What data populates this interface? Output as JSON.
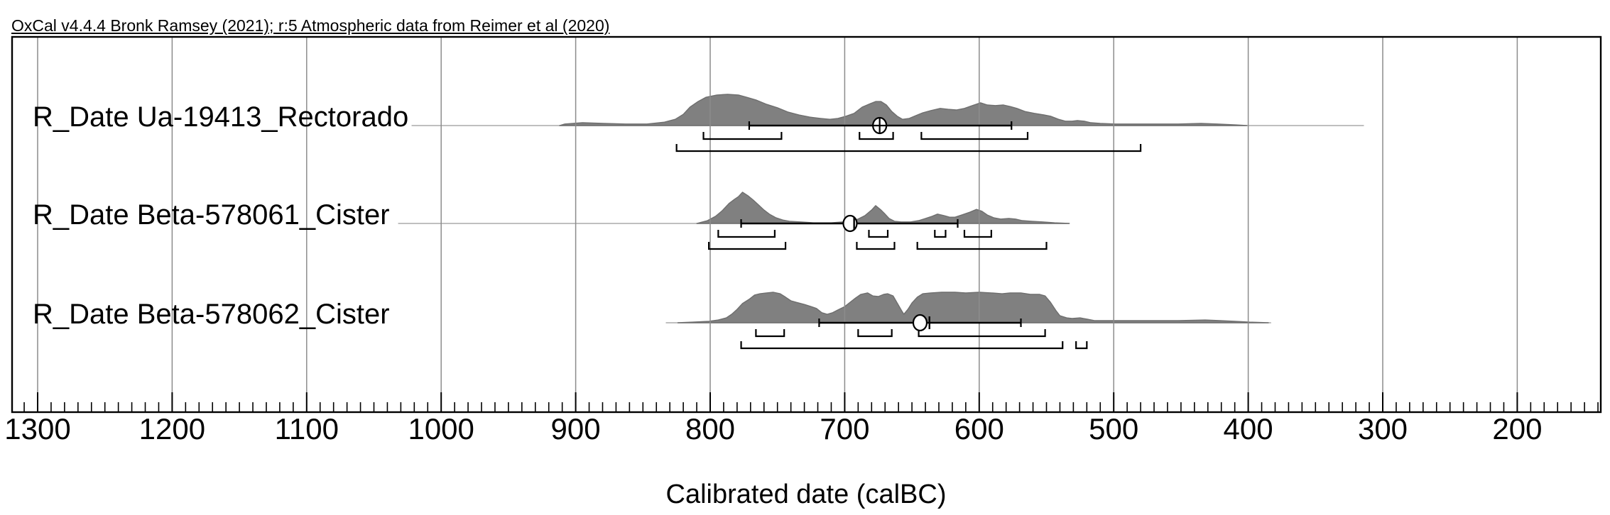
{
  "chart_data": {
    "type": "area",
    "title": "OxCal v4.4.4 Bronk Ramsey (2021); r:5 Atmospheric data from Reimer et al (2020)",
    "xlabel": "Calibrated date (calBC)",
    "x_axis": {
      "direction": "values-decrease-to-right",
      "visible_range": [
        1319,
        138
      ],
      "major_tick_labels": [
        "1300",
        "1200",
        "1100",
        "1000",
        "900",
        "800",
        "700",
        "600",
        "500",
        "400",
        "300",
        "200"
      ],
      "major_tick_values": [
        1300,
        1200,
        1100,
        1000,
        900,
        800,
        700,
        600,
        500,
        400,
        300,
        200
      ],
      "minor_tick_step": 10,
      "grid": "vertical-major"
    },
    "distributions": [
      {
        "label": "R_Date Ua-19413_Rectorado",
        "marker_style": "circle-cross",
        "mean_calBC": 674,
        "median_calBC": 674,
        "mean_1sigma_range_calBC": [
          771,
          576
        ],
        "ranges_68_3_calBC": [
          [
            805,
            747
          ],
          [
            689,
            664
          ],
          [
            643,
            564
          ]
        ],
        "ranges_95_4_calBC": [
          [
            825,
            480
          ]
        ],
        "baseline_extent_calBC": [
          1022,
          314
        ],
        "pdf": {
          "calBC": [
            912,
            908,
            895,
            879,
            863,
            847,
            834,
            826,
            820,
            815,
            809,
            803,
            795,
            787,
            779,
            773,
            766,
            758,
            750,
            742,
            734,
            726,
            718,
            711,
            705,
            699,
            693,
            687,
            681,
            677,
            673,
            669,
            665,
            661,
            657,
            652,
            647,
            642,
            636,
            629,
            623,
            617,
            611,
            605,
            599,
            594,
            588,
            582,
            577,
            572,
            566,
            559,
            552,
            547,
            541,
            536,
            531,
            527,
            522,
            517,
            510,
            499,
            478,
            452,
            435,
            423,
            409,
            401
          ],
          "p": [
            0,
            0.05,
            0.09,
            0.07,
            0.05,
            0.05,
            0.11,
            0.2,
            0.36,
            0.59,
            0.77,
            0.91,
            0.98,
            1,
            0.98,
            0.91,
            0.82,
            0.68,
            0.57,
            0.43,
            0.34,
            0.27,
            0.23,
            0.2,
            0.23,
            0.3,
            0.39,
            0.59,
            0.7,
            0.77,
            0.77,
            0.66,
            0.45,
            0.3,
            0.2,
            0.23,
            0.32,
            0.41,
            0.48,
            0.55,
            0.52,
            0.5,
            0.55,
            0.64,
            0.73,
            0.66,
            0.64,
            0.66,
            0.61,
            0.55,
            0.45,
            0.39,
            0.34,
            0.3,
            0.2,
            0.14,
            0.14,
            0.16,
            0.14,
            0.09,
            0.07,
            0.05,
            0.05,
            0.05,
            0.07,
            0.05,
            0.02,
            0
          ]
        }
      },
      {
        "label": "R_Date Beta-578061_Cister",
        "marker_style": "circle-tick",
        "mean_calBC": 696,
        "median_calBC": 693,
        "mean_1sigma_range_calBC": [
          777,
          616
        ],
        "ranges_68_3_calBC": [
          [
            794,
            752
          ],
          [
            682,
            668
          ],
          [
            633,
            625
          ],
          [
            611,
            591
          ]
        ],
        "ranges_95_4_calBC": [
          [
            801,
            744
          ],
          [
            691,
            663
          ],
          [
            646,
            550
          ]
        ],
        "baseline_extent_calBC": [
          1032,
          533
        ],
        "pdf": {
          "calBC": [
            810,
            808,
            802,
            796,
            791,
            786,
            782,
            779,
            776,
            772,
            768,
            764,
            760,
            756,
            751,
            746,
            741,
            733,
            723,
            710,
            701,
            695,
            690,
            685,
            680,
            677,
            673,
            670,
            667,
            663,
            658,
            651,
            645,
            640,
            635,
            631,
            626,
            622,
            618,
            613,
            607,
            602,
            598,
            594,
            589,
            584,
            578,
            573,
            568,
            561,
            553,
            544,
            533
          ],
          "p": [
            0,
            0.02,
            0.09,
            0.23,
            0.41,
            0.64,
            0.77,
            0.86,
            1,
            0.89,
            0.75,
            0.59,
            0.43,
            0.3,
            0.18,
            0.11,
            0.07,
            0.05,
            0.02,
            0.02,
            0.05,
            0.07,
            0.14,
            0.25,
            0.43,
            0.57,
            0.43,
            0.3,
            0.16,
            0.07,
            0.05,
            0.05,
            0.09,
            0.16,
            0.23,
            0.3,
            0.25,
            0.2,
            0.2,
            0.27,
            0.36,
            0.45,
            0.39,
            0.27,
            0.18,
            0.14,
            0.16,
            0.14,
            0.09,
            0.07,
            0.05,
            0.02,
            0
          ]
        }
      },
      {
        "label": "R_Date Beta-578062_Cister",
        "marker_style": "circle-tick",
        "mean_calBC": 644,
        "median_calBC": 637,
        "mean_1sigma_range_calBC": [
          719,
          569
        ],
        "ranges_68_3_calBC": [
          [
            766,
            745
          ],
          [
            690,
            665
          ],
          [
            645,
            551
          ]
        ],
        "ranges_95_4_calBC": [
          [
            777,
            538
          ],
          [
            528,
            520
          ]
        ],
        "baseline_extent_calBC": [
          833,
          383
        ],
        "pdf": {
          "calBC": [
            824,
            813,
            801,
            794,
            788,
            784,
            780,
            776,
            771,
            767,
            763,
            758,
            753,
            748,
            744,
            740,
            736,
            730,
            725,
            721,
            717,
            713,
            709,
            705,
            700,
            696,
            692,
            688,
            683,
            679,
            675,
            671,
            668,
            664,
            661,
            658,
            656,
            653,
            650,
            646,
            642,
            636,
            628,
            618,
            610,
            600,
            591,
            583,
            577,
            569,
            562,
            555,
            551,
            547,
            543,
            540,
            535,
            531,
            525,
            520,
            514,
            499,
            473,
            452,
            432,
            421,
            410,
            399,
            385
          ],
          "p": [
            0,
            0.02,
            0.05,
            0.09,
            0.16,
            0.28,
            0.44,
            0.63,
            0.77,
            0.91,
            0.95,
            0.98,
            1,
            0.95,
            0.84,
            0.72,
            0.67,
            0.6,
            0.53,
            0.47,
            0.33,
            0.28,
            0.33,
            0.42,
            0.53,
            0.67,
            0.81,
            0.93,
            0.98,
            0.88,
            0.86,
            0.93,
            0.95,
            0.88,
            0.65,
            0.42,
            0.28,
            0.44,
            0.65,
            0.84,
            0.95,
            0.98,
            1,
            1,
            0.98,
            1,
            0.98,
            0.95,
            0.98,
            0.98,
            0.93,
            0.93,
            0.88,
            0.67,
            0.4,
            0.23,
            0.16,
            0.14,
            0.16,
            0.12,
            0.07,
            0.07,
            0.07,
            0.07,
            0.09,
            0.07,
            0.05,
            0.02,
            0
          ]
        }
      }
    ],
    "colors": {
      "pdf_fill": "#808080",
      "pdf_outline": "#6e6e6e",
      "baseline_gray": "#aaaaaa",
      "gridline": "#8c8c8c",
      "ink": "#000000",
      "background": "#ffffff"
    }
  }
}
